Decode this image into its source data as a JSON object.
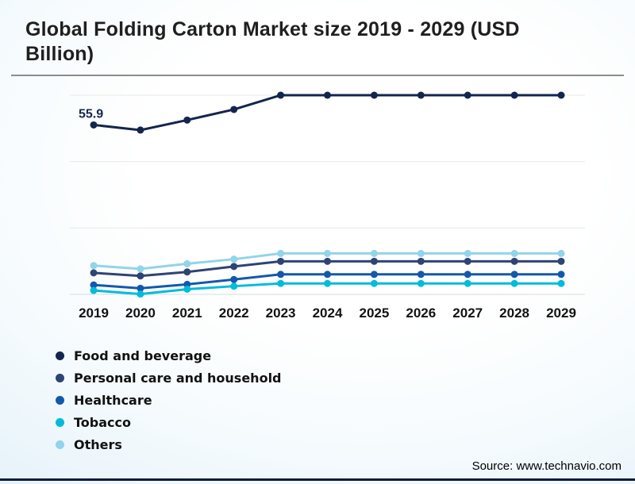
{
  "page": {
    "title": "Global Folding Carton Market size 2019 - 2029 (USD Billion)",
    "source_note": "Source: www.technavio.com"
  },
  "chart_data": {
    "type": "line",
    "title": "Global Folding Carton Market size 2019 - 2029 (USD Billion)",
    "xlabel": "",
    "ylabel": "",
    "x": [
      "2019",
      "2020",
      "2021",
      "2022",
      "2023",
      "2024",
      "2025",
      "2026",
      "2027",
      "2028",
      "2029"
    ],
    "series": [
      {
        "name": "Food and beverage",
        "color": "#14254d",
        "values": [
          55.9,
          54.2,
          57.5,
          61.0,
          65.7,
          65.7,
          65.7,
          65.7,
          65.7,
          65.7,
          65.7
        ]
      },
      {
        "name": "Personal care and household",
        "color": "#2f4374",
        "values": [
          7.1,
          6.1,
          7.4,
          9.2,
          10.9,
          10.9,
          10.9,
          10.9,
          10.9,
          10.9,
          10.9
        ]
      },
      {
        "name": "Healthcare",
        "color": "#1458ad",
        "values": [
          3.1,
          2.0,
          3.3,
          4.9,
          6.6,
          6.6,
          6.6,
          6.6,
          6.6,
          6.6,
          6.6
        ]
      },
      {
        "name": "Tobacco",
        "color": "#00bcdc",
        "values": [
          1.3,
          0.1,
          1.7,
          2.7,
          3.6,
          3.6,
          3.6,
          3.6,
          3.6,
          3.6,
          3.6
        ]
      },
      {
        "name": "Others",
        "color": "#92d4ea",
        "values": [
          9.5,
          8.4,
          10.1,
          11.6,
          13.5,
          13.5,
          13.5,
          13.5,
          13.5,
          13.5,
          13.5
        ]
      }
    ],
    "annotations": [
      {
        "text": "55.9",
        "series": "Food and beverage",
        "x": "2019",
        "color": "#14254d"
      }
    ],
    "ylim": [
      0,
      65.7
    ],
    "gridlines": 4,
    "grid": "horizontal only, very faint",
    "legend_position": "bottom-left",
    "axis_label_color": "#121212"
  }
}
